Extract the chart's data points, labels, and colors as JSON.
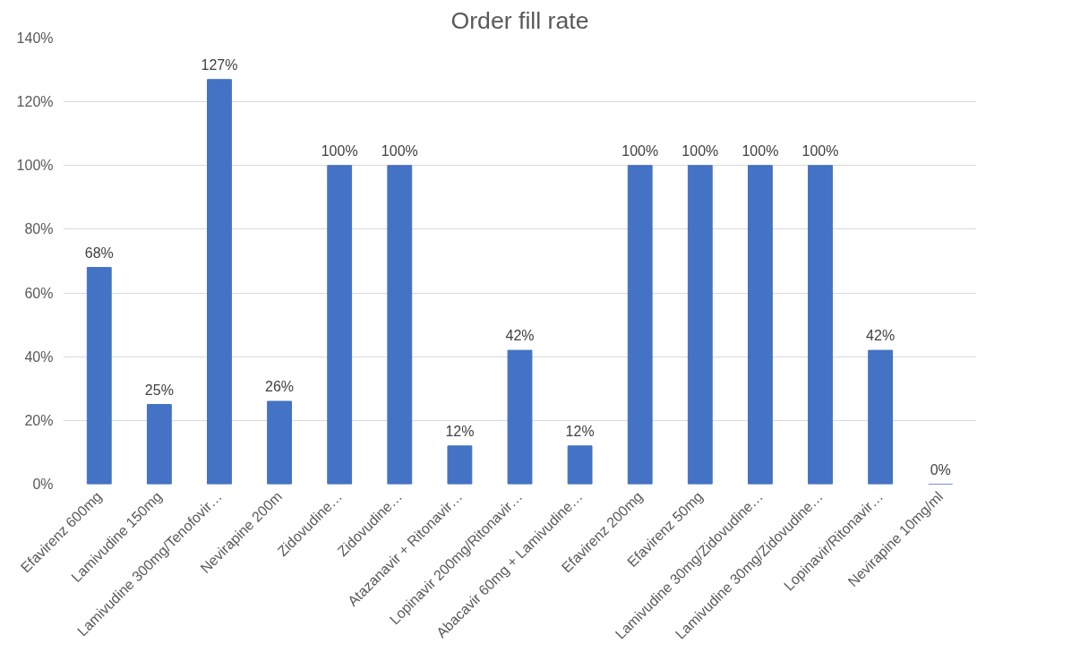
{
  "chart_data": {
    "type": "bar",
    "title": "Order fill rate",
    "categories": [
      "Efavirenz 600mg",
      "Lamivudine 150mg",
      "Lamivudine 300mg/Tenofovir…",
      "Nevirapine 200m",
      "Zidovudine…",
      "Zidovudine…",
      "Atazanavir + Ritonavir…",
      "Lopinavir 200mg/Ritonavir…",
      "Abacavir 60mg + Lamivudine…",
      "Efavirenz 200mg",
      "Efavirenz 50mg",
      "Lamivudine 30mg/Zidovudine…",
      "Lamivudine 30mg/Zidovudine…",
      "Lopinavir/Ritonavir…",
      "Nevirapine 10mg/ml"
    ],
    "values": [
      68,
      25,
      127,
      26,
      100,
      100,
      12,
      42,
      12,
      100,
      100,
      100,
      100,
      42,
      0
    ],
    "value_labels": [
      "68%",
      "25%",
      "127%",
      "26%",
      "100%",
      "100%",
      "12%",
      "42%",
      "12%",
      "100%",
      "100%",
      "100%",
      "100%",
      "42%",
      "0%"
    ],
    "color": "#4472c4",
    "ylim": [
      0,
      140
    ],
    "yticks": [
      {
        "value": 0,
        "label": "0%"
      },
      {
        "value": 20,
        "label": "20%"
      },
      {
        "value": 40,
        "label": "40%"
      },
      {
        "value": 60,
        "label": "60%"
      },
      {
        "value": 80,
        "label": "80%"
      },
      {
        "value": 100,
        "label": "100%"
      },
      {
        "value": 120,
        "label": "120%"
      },
      {
        "value": 140,
        "label": "140%"
      }
    ],
    "grid": "y"
  }
}
